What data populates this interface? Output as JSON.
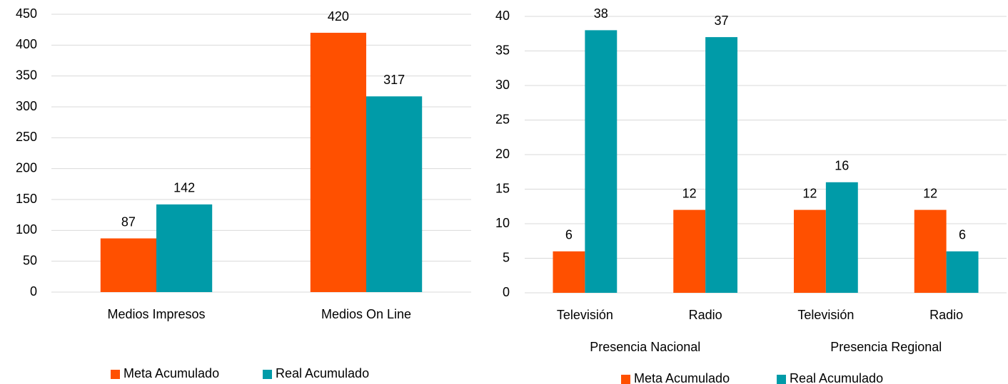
{
  "chart_data": [
    {
      "type": "bar",
      "categories": [
        "Medios Impresos",
        "Medios On Line"
      ],
      "series": [
        {
          "name": "Meta Acumulado",
          "color": "#ff5000",
          "values": [
            87,
            420
          ]
        },
        {
          "name": "Real Acumulado",
          "color": "#009ba8",
          "values": [
            142,
            317
          ]
        }
      ],
      "ylim": [
        0,
        450
      ],
      "yticks": [
        0,
        50,
        100,
        150,
        200,
        250,
        300,
        350,
        400,
        450
      ],
      "grid": true,
      "legend": "bottom"
    },
    {
      "type": "bar",
      "categories": [
        "Televisión",
        "Radio",
        "Televisión",
        "Radio"
      ],
      "group_labels": [
        "Presencia Nacional",
        "Presencia Regional"
      ],
      "series": [
        {
          "name": "Meta Acumulado",
          "color": "#ff5000",
          "values": [
            6,
            12,
            12,
            12
          ]
        },
        {
          "name": "Real Acumulado",
          "color": "#009ba8",
          "values": [
            38,
            37,
            16,
            6
          ]
        }
      ],
      "ylim": [
        0,
        40
      ],
      "yticks": [
        0,
        5,
        10,
        15,
        20,
        25,
        30,
        35,
        40
      ],
      "grid": true,
      "legend": "bottom"
    }
  ]
}
